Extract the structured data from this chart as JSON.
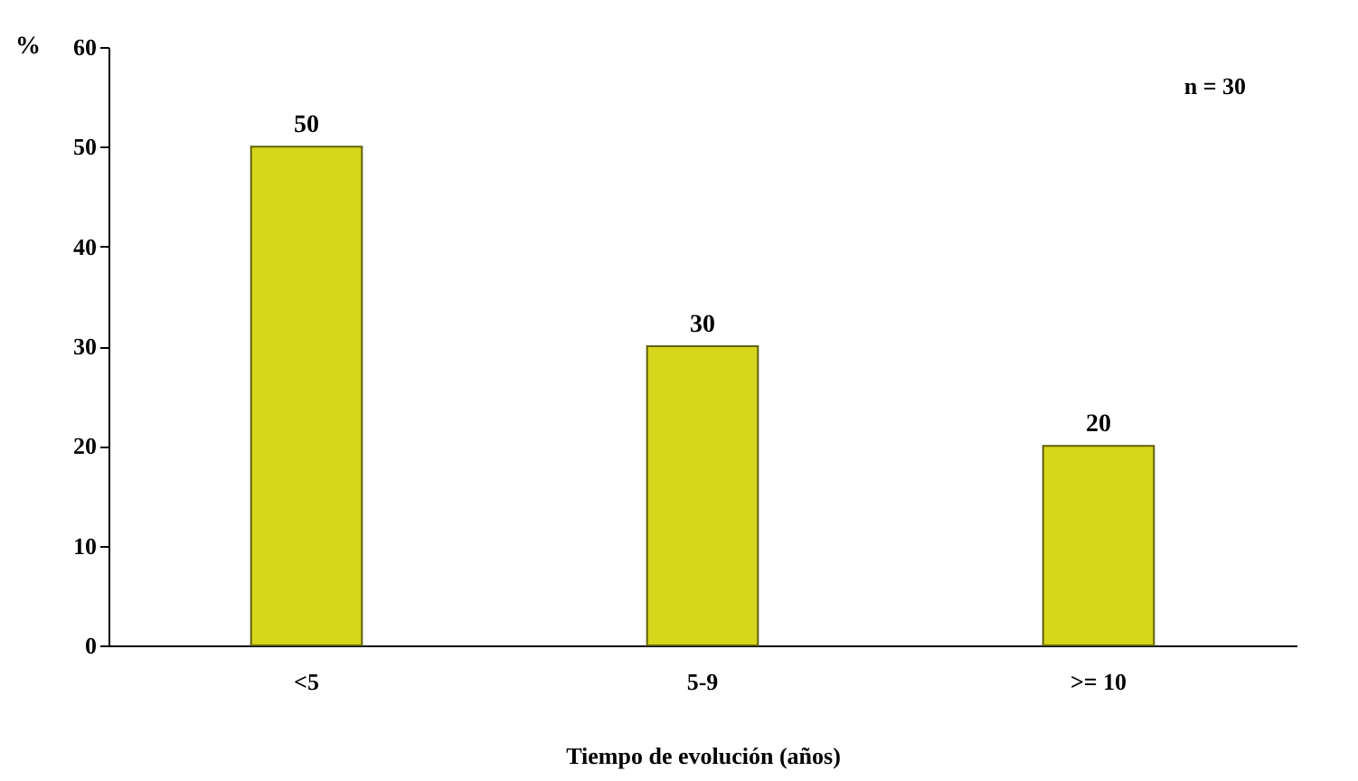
{
  "chart_data": {
    "type": "bar",
    "xlabel": "Tiempo de evolución (años)",
    "ylabel": "%",
    "annotations": [
      "n = 30"
    ],
    "categories": [
      "<5",
      "5-9",
      ">= 10"
    ],
    "values": [
      50,
      30,
      20
    ],
    "color": "#d6d61c",
    "ylim": [
      0,
      60
    ],
    "yticks": [
      0,
      10,
      20,
      30,
      40,
      50,
      60
    ],
    "grid": false,
    "data_labels": true
  }
}
